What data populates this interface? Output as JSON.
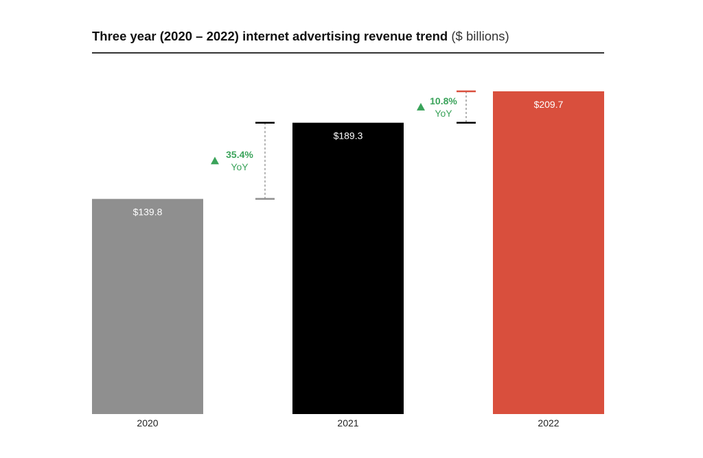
{
  "chart_data": {
    "type": "bar",
    "title": "Three year (2020 – 2022) internet advertising revenue trend",
    "subtitle": "($ billions)",
    "categories": [
      "2020",
      "2021",
      "2022"
    ],
    "values": [
      139.8,
      189.3,
      209.7
    ],
    "value_labels": [
      "$139.8",
      "$189.3",
      "$209.7"
    ],
    "bar_colors": [
      "#8f8f8f",
      "#000000",
      "#d94f3d"
    ],
    "ylim": [
      0,
      209.7
    ],
    "grid": false,
    "annotations": [
      {
        "from": "2020",
        "to": "2021",
        "change": "35.4%",
        "label": "YoY",
        "direction": "up",
        "color": "#3aa35a"
      },
      {
        "from": "2021",
        "to": "2022",
        "change": "10.8%",
        "label": "YoY",
        "direction": "up",
        "color": "#3aa35a"
      }
    ]
  }
}
